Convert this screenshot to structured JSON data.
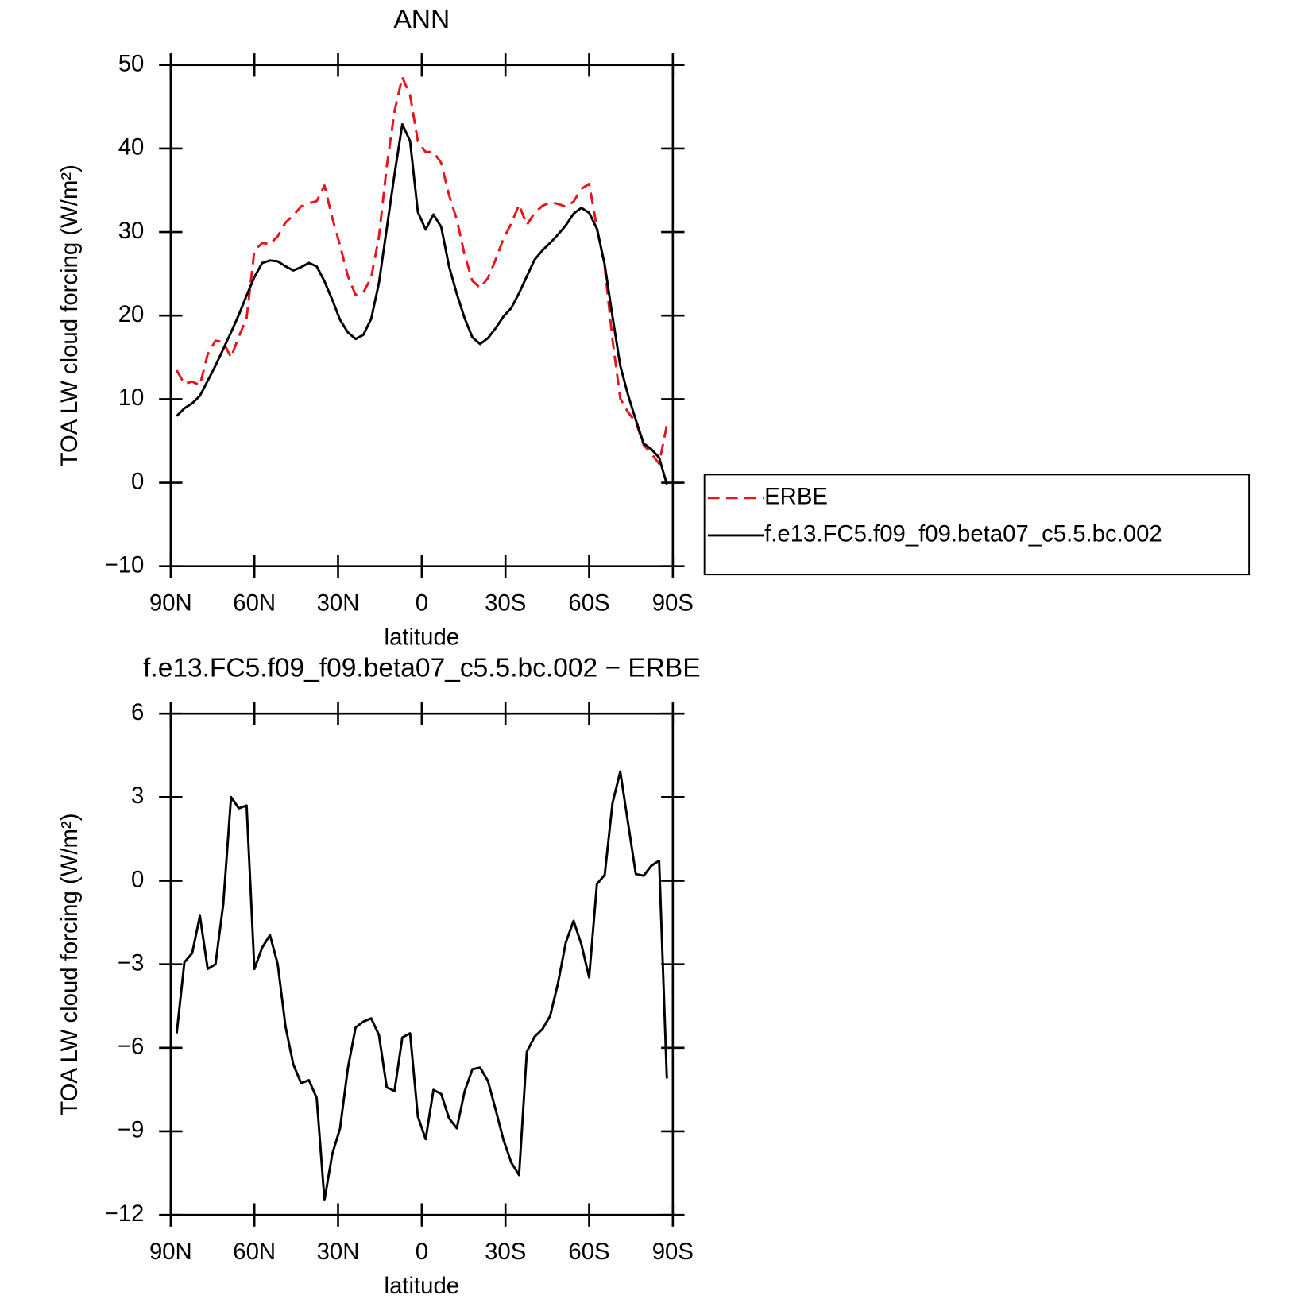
{
  "chart_data": [
    {
      "type": "line",
      "title": "ANN",
      "xlabel": "latitude",
      "ylabel": "TOA LW cloud forcing (W/m²)",
      "x": [
        87.86,
        85.1,
        82.31,
        79.53,
        76.74,
        73.95,
        71.16,
        68.37,
        65.58,
        62.79,
        60.0,
        57.21,
        54.42,
        51.63,
        48.84,
        46.04,
        43.25,
        40.46,
        37.67,
        34.88,
        32.09,
        29.3,
        26.51,
        23.72,
        20.93,
        18.14,
        15.35,
        12.56,
        9.77,
        6.98,
        4.19,
        1.4,
        -1.4,
        -4.19,
        -6.98,
        -9.77,
        -12.56,
        -15.35,
        -18.14,
        -20.93,
        -23.72,
        -26.51,
        -29.3,
        -32.09,
        -34.88,
        -37.67,
        -40.46,
        -43.25,
        -46.04,
        -48.84,
        -51.63,
        -54.42,
        -57.21,
        -60.0,
        -62.79,
        -65.58,
        -68.37,
        -71.16,
        -73.95,
        -76.74,
        -79.53,
        -82.31,
        -85.1,
        -87.86
      ],
      "series": [
        {
          "name": "ERBE",
          "color": "#e8141c",
          "style": "dashed",
          "values": [
            13.46,
            11.83,
            12.1,
            11.66,
            15.37,
            17.0,
            16.84,
            15.0,
            17.5,
            19.7,
            27.77,
            28.7,
            28.55,
            29.5,
            31.14,
            32.0,
            33.07,
            33.46,
            33.7,
            35.57,
            31.72,
            28.4,
            24.74,
            22.47,
            22.76,
            24.54,
            29.44,
            37.82,
            44.45,
            48.53,
            46.38,
            40.87,
            39.58,
            39.61,
            38.26,
            34.43,
            31.49,
            27.27,
            24.17,
            23.31,
            24.49,
            26.73,
            29.21,
            31.02,
            33.27,
            30.84,
            32.3,
            33.13,
            33.55,
            33.38,
            33.02,
            33.64,
            35.18,
            35.77,
            30.52,
            25.89,
            17.12,
            10.08,
            8.43,
            7.26,
            4.52,
            3.46,
            2.28,
            6.9
          ]
        },
        {
          "name": "f.e13.FC5.f09_f09.beta07_c5.5.bc.002",
          "color": "#000000",
          "style": "solid",
          "values": [
            7.98,
            8.9,
            9.5,
            10.4,
            12.2,
            14.0,
            16.0,
            18.0,
            20.1,
            22.4,
            24.6,
            26.3,
            26.6,
            26.5,
            25.9,
            25.4,
            25.8,
            26.3,
            25.9,
            24.1,
            21.9,
            19.5,
            18.0,
            17.2,
            17.7,
            19.6,
            23.9,
            30.4,
            36.9,
            42.9,
            40.9,
            32.4,
            30.3,
            32.1,
            30.6,
            25.9,
            22.6,
            19.7,
            17.4,
            16.6,
            17.3,
            18.5,
            19.9,
            20.9,
            22.7,
            24.7,
            26.7,
            27.8,
            28.7,
            29.7,
            30.8,
            32.2,
            32.9,
            32.3,
            30.4,
            26.1,
            19.9,
            14.0,
            10.5,
            7.5,
            4.7,
            4.0,
            3.0,
            -0.2
          ]
        }
      ],
      "xlim": [
        90,
        -90
      ],
      "xticks": [
        {
          "value": 90,
          "label": "90N"
        },
        {
          "value": 60,
          "label": "60N"
        },
        {
          "value": 30,
          "label": "30N"
        },
        0,
        {
          "value": -30,
          "label": "30S"
        },
        {
          "value": -60,
          "label": "60S"
        },
        {
          "value": -90,
          "label": "90S"
        }
      ],
      "ylim": [
        -10,
        50
      ],
      "yticks": [
        {
          "value": -10,
          "label": "−10"
        },
        0,
        10,
        20,
        30,
        40,
        50
      ],
      "legend": "right"
    },
    {
      "type": "line",
      "title": "f.e13.FC5.f09_f09.beta07_c5.5.bc.002 − ERBE",
      "xlabel": "latitude",
      "ylabel": "TOA LW cloud forcing (W/m²)",
      "x": [
        87.86,
        85.1,
        82.31,
        79.53,
        76.74,
        73.95,
        71.16,
        68.37,
        65.58,
        62.79,
        60.0,
        57.21,
        54.42,
        51.63,
        48.84,
        46.04,
        43.25,
        40.46,
        37.67,
        34.88,
        32.09,
        29.3,
        26.51,
        23.72,
        20.93,
        18.14,
        15.35,
        12.56,
        9.77,
        6.98,
        4.19,
        1.4,
        -1.4,
        -4.19,
        -6.98,
        -9.77,
        -12.56,
        -15.35,
        -18.14,
        -20.93,
        -23.72,
        -26.51,
        -29.3,
        -32.09,
        -34.88,
        -37.67,
        -40.46,
        -43.25,
        -46.04,
        -48.84,
        -51.63,
        -54.42,
        -57.21,
        -60.0,
        -62.79,
        -65.58,
        -68.37,
        -71.16,
        -73.95,
        -76.74,
        -79.53,
        -82.31,
        -85.1,
        -87.86
      ],
      "values": [
        -5.48,
        -2.93,
        -2.6,
        -1.26,
        -3.17,
        -3.0,
        -0.84,
        3.0,
        2.6,
        2.7,
        -3.17,
        -2.4,
        -1.95,
        -3.0,
        -5.24,
        -6.6,
        -7.27,
        -7.16,
        -7.8,
        -11.47,
        -9.82,
        -8.9,
        -6.74,
        -5.27,
        -5.06,
        -4.94,
        -5.54,
        -7.42,
        -7.55,
        -5.63,
        -5.48,
        -8.47,
        -9.28,
        -7.51,
        -7.66,
        -8.53,
        -8.89,
        -7.57,
        -6.77,
        -6.71,
        -7.19,
        -8.23,
        -9.31,
        -10.12,
        -10.57,
        -6.14,
        -5.6,
        -5.33,
        -4.85,
        -3.68,
        -2.22,
        -1.44,
        -2.28,
        -3.47,
        -0.12,
        0.21,
        2.78,
        3.92,
        2.07,
        0.24,
        0.18,
        0.54,
        0.72,
        -7.1
      ],
      "color": "#000000",
      "xlim": [
        90,
        -90
      ],
      "xticks": [
        {
          "value": 90,
          "label": "90N"
        },
        {
          "value": 60,
          "label": "60N"
        },
        {
          "value": 30,
          "label": "30N"
        },
        0,
        {
          "value": -30,
          "label": "30S"
        },
        {
          "value": -60,
          "label": "60S"
        },
        {
          "value": -90,
          "label": "90S"
        }
      ],
      "ylim": [
        -12,
        6
      ],
      "yticks": [
        {
          "value": -12,
          "label": "−12"
        },
        {
          "value": -9,
          "label": "−9"
        },
        {
          "value": -6,
          "label": "−6"
        },
        {
          "value": -3,
          "label": "−3"
        },
        0,
        3,
        6
      ]
    }
  ]
}
